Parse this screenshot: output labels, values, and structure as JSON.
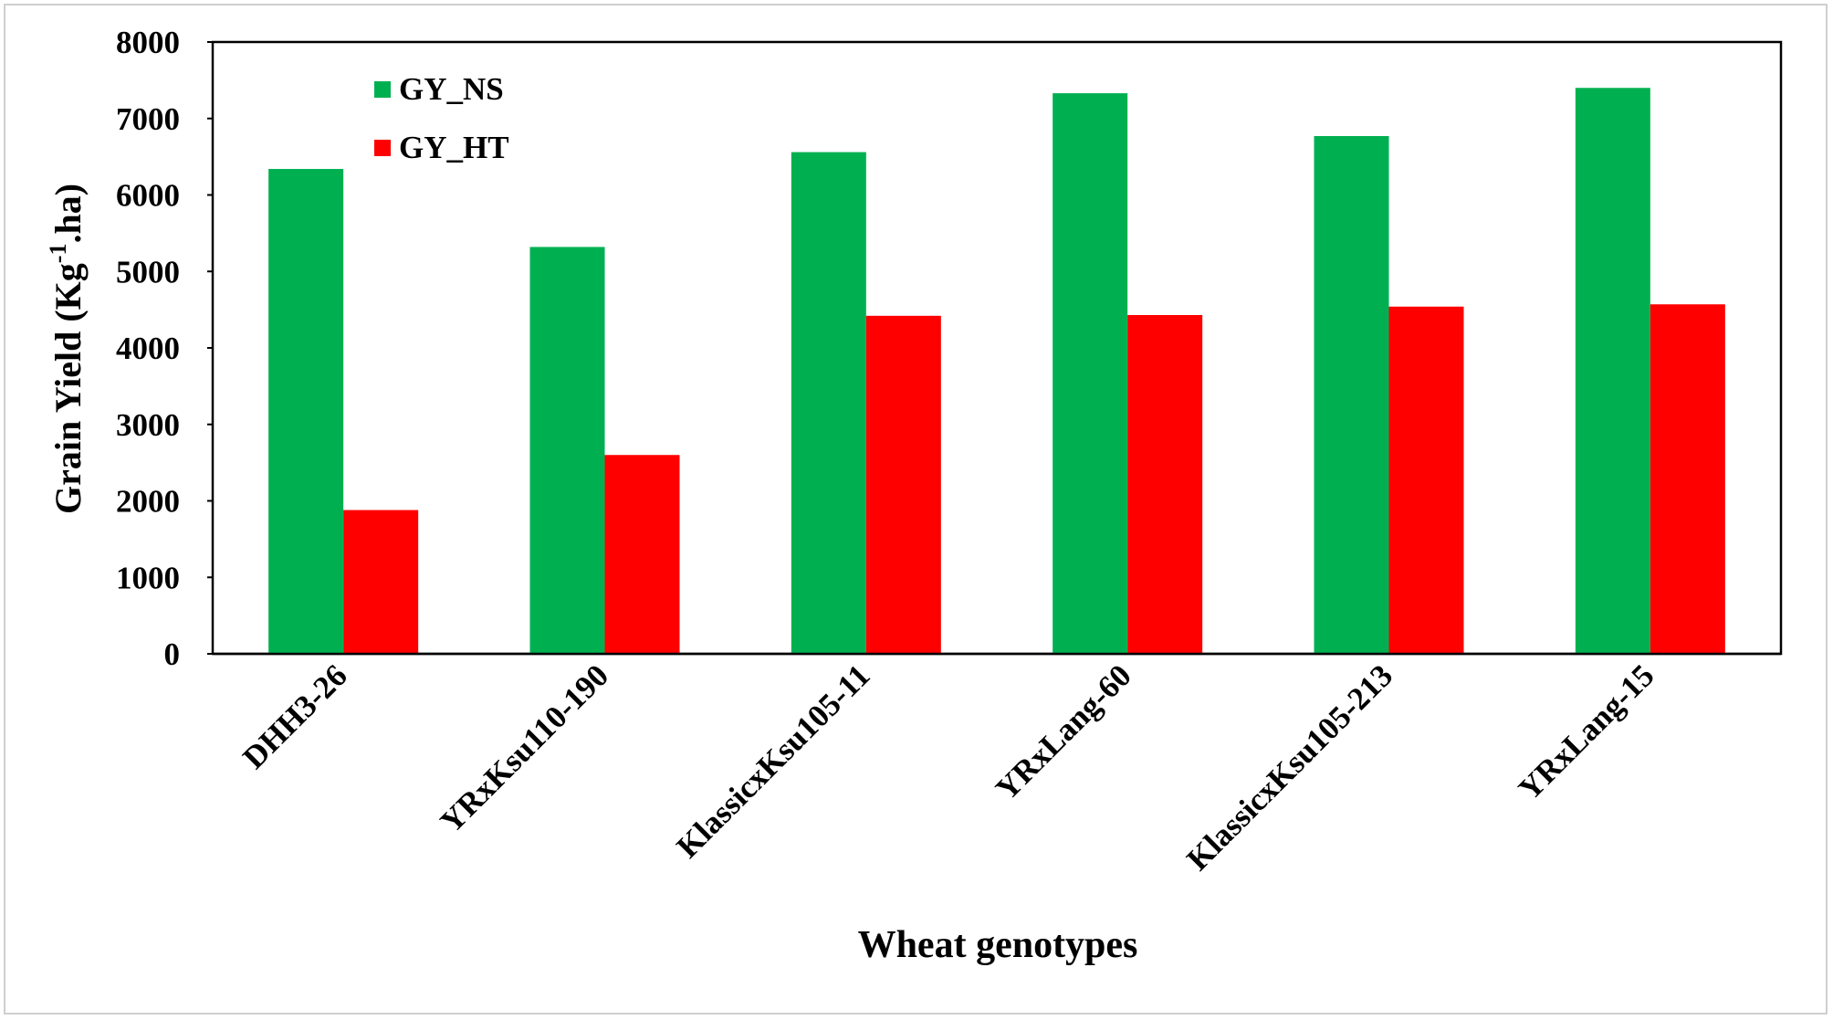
{
  "chart_data": {
    "type": "bar",
    "title": "",
    "xlabel": "Wheat genotypes",
    "ylabel_main": "Grain Yield (Kg",
    "ylabel_sup": "-1",
    "ylabel_end": ".ha)",
    "ylim": [
      0,
      8000
    ],
    "yticks": [
      0,
      1000,
      2000,
      3000,
      4000,
      5000,
      6000,
      7000,
      8000
    ],
    "categories": [
      "DHH3-26",
      "YRxKsu110-190",
      "KlassicxKsu105-11",
      "YRxLang-60",
      "KlassicxKsu105-213",
      "YRxLang-15"
    ],
    "series": [
      {
        "name": "GY_NS",
        "color": "#00b050",
        "values": [
          6340,
          5320,
          6560,
          7330,
          6770,
          7400
        ]
      },
      {
        "name": "GY_HT",
        "color": "#ff0000",
        "values": [
          1880,
          2600,
          4420,
          4430,
          4540,
          4570
        ]
      }
    ],
    "legend_position": "top-left",
    "grid": false
  }
}
